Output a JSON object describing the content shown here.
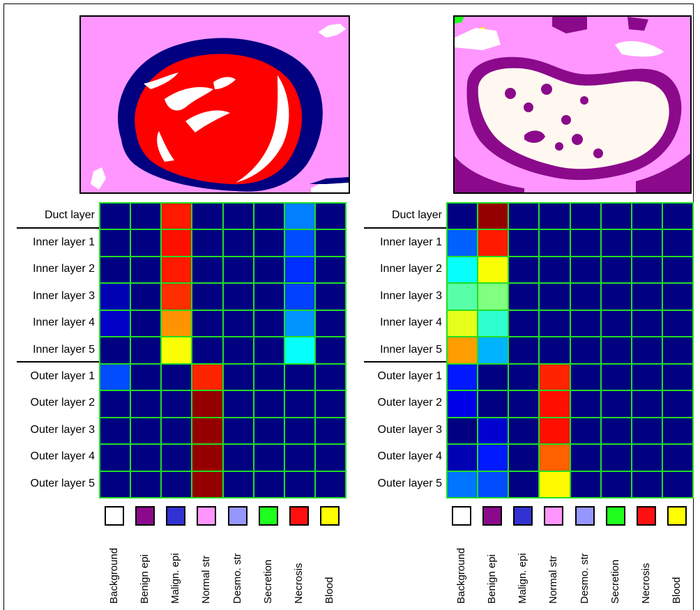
{
  "tissue_classes": [
    {
      "label": "Background",
      "color": "#ffffff"
    },
    {
      "label": "Benign epi",
      "color": "#8b0a8b"
    },
    {
      "label": "Malign. epi",
      "color": "#3232d2"
    },
    {
      "label": "Normal str",
      "color": "#ff96ff"
    },
    {
      "label": "Desmo. str",
      "color": "#9696ff"
    },
    {
      "label": "Secretion",
      "color": "#1eff1e"
    },
    {
      "label": "Necrosis",
      "color": "#ff1010"
    },
    {
      "label": "Blood",
      "color": "#ffff00"
    }
  ],
  "colormap": "jet",
  "chart_data": [
    {
      "type": "heatmap",
      "rows": [
        "Duct layer",
        "Inner layer 1",
        "Inner layer 2",
        "Inner layer 3",
        "Inner layer 4",
        "Inner layer 5",
        "Outer layer 1",
        "Outer layer 2",
        "Outer layer 3",
        "Outer layer 4",
        "Outer layer 5"
      ],
      "columns": [
        "Background",
        "Benign epi",
        "Malign. epi",
        "Normal str",
        "Desmo. str",
        "Secretion",
        "Necrosis",
        "Blood"
      ],
      "values": [
        [
          0.0,
          0.0,
          0.85,
          0.0,
          0.0,
          0.0,
          0.25,
          0.0
        ],
        [
          0.0,
          0.0,
          0.86,
          0.0,
          0.0,
          0.0,
          0.2,
          0.0
        ],
        [
          0.0,
          0.0,
          0.85,
          0.0,
          0.0,
          0.0,
          0.17,
          0.0
        ],
        [
          0.05,
          0.0,
          0.83,
          0.0,
          0.0,
          0.0,
          0.19,
          0.0
        ],
        [
          0.07,
          0.0,
          0.73,
          0.0,
          0.0,
          0.0,
          0.27,
          0.0
        ],
        [
          0.0,
          0.0,
          0.62,
          0.0,
          0.0,
          0.0,
          0.38,
          0.0
        ],
        [
          0.2,
          0.0,
          0.0,
          0.84,
          0.0,
          0.0,
          0.0,
          0.0
        ],
        [
          0.0,
          0.0,
          0.0,
          0.98,
          0.0,
          0.0,
          0.0,
          0.0
        ],
        [
          0.0,
          0.0,
          0.0,
          0.98,
          0.0,
          0.0,
          0.0,
          0.0
        ],
        [
          0.0,
          0.0,
          0.0,
          0.98,
          0.0,
          0.0,
          0.0,
          0.0
        ],
        [
          0.0,
          0.0,
          0.0,
          0.98,
          0.0,
          0.0,
          0.0,
          0.0
        ]
      ],
      "separator_after_row": 0,
      "group_break_after_row": 5
    },
    {
      "type": "heatmap",
      "rows": [
        "Duct layer",
        "Inner layer 1",
        "Inner layer 2",
        "Inner layer 3",
        "Inner layer 4",
        "Inner layer 5",
        "Outer layer 1",
        "Outer layer 2",
        "Outer layer 3",
        "Outer layer 4",
        "Outer layer 5"
      ],
      "columns": [
        "Background",
        "Benign epi",
        "Malign. epi",
        "Normal str",
        "Desmo. str",
        "Secretion",
        "Necrosis",
        "Blood"
      ],
      "values": [
        [
          0.0,
          0.98,
          0.0,
          0.0,
          0.0,
          0.0,
          0.0,
          0.0
        ],
        [
          0.22,
          0.85,
          0.0,
          0.0,
          0.0,
          0.0,
          0.0,
          0.0
        ],
        [
          0.38,
          0.62,
          0.0,
          0.0,
          0.0,
          0.0,
          0.0,
          0.0
        ],
        [
          0.46,
          0.5,
          0.0,
          0.0,
          0.0,
          0.0,
          0.0,
          0.0
        ],
        [
          0.6,
          0.42,
          0.0,
          0.0,
          0.0,
          0.0,
          0.0,
          0.0
        ],
        [
          0.72,
          0.3,
          0.0,
          0.0,
          0.0,
          0.0,
          0.0,
          0.0
        ],
        [
          0.15,
          0.0,
          0.0,
          0.84,
          0.0,
          0.0,
          0.0,
          0.0
        ],
        [
          0.1,
          0.0,
          0.0,
          0.86,
          0.0,
          0.0,
          0.0,
          0.0
        ],
        [
          0.0,
          0.08,
          0.0,
          0.86,
          0.0,
          0.0,
          0.0,
          0.0
        ],
        [
          0.05,
          0.15,
          0.0,
          0.78,
          0.0,
          0.0,
          0.0,
          0.0
        ],
        [
          0.24,
          0.2,
          0.0,
          0.63,
          0.0,
          0.0,
          0.0,
          0.0
        ]
      ],
      "separator_after_row": 0,
      "group_break_after_row": 5
    }
  ]
}
